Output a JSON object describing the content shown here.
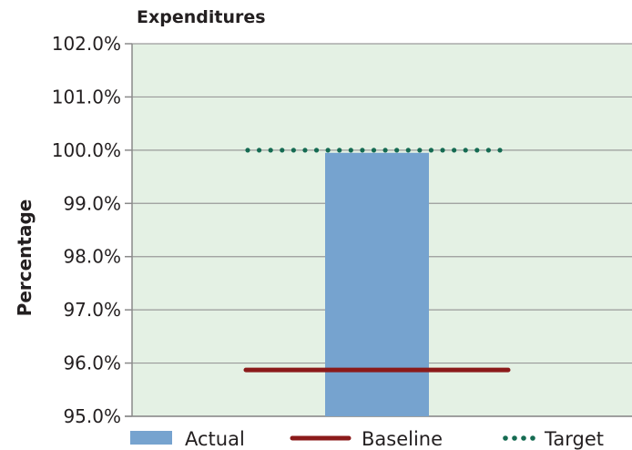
{
  "chart_data": {
    "type": "bar",
    "title": "Expenditures",
    "xlabel": "",
    "ylabel": "Percentage",
    "ylim": [
      95.0,
      102.0
    ],
    "yticks": [
      "95.0%",
      "96.0%",
      "97.0%",
      "98.0%",
      "99.0%",
      "100.0%",
      "101.0%",
      "102.0%"
    ],
    "ytick_values": [
      95,
      96,
      97,
      98,
      99,
      100,
      101,
      102
    ],
    "grid": true,
    "background_color": "#e4f1e4",
    "series": [
      {
        "name": "Actual",
        "type": "bar",
        "value": 99.95,
        "color": "#76a3cf"
      },
      {
        "name": "Baseline",
        "type": "line",
        "value": 95.87,
        "style": "solid",
        "color": "#8b1a1a"
      },
      {
        "name": "Target",
        "type": "line",
        "value": 100.0,
        "style": "dotted",
        "color": "#156b52"
      }
    ],
    "legend": {
      "position": "bottom",
      "entries": [
        "Actual",
        "Baseline",
        "Target"
      ]
    }
  }
}
